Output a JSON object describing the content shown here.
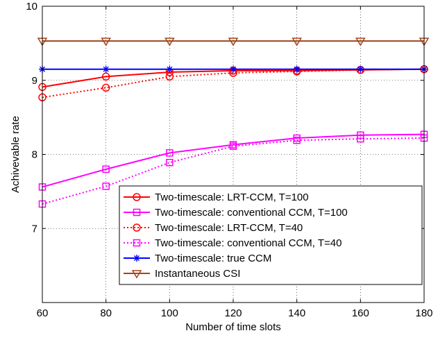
{
  "chart_data": {
    "type": "line",
    "title": "",
    "xlabel": "Number of time slots",
    "ylabel": "Achivevable rate",
    "xlim": [
      60,
      180
    ],
    "ylim": [
      6,
      10
    ],
    "xticks": [
      60,
      80,
      100,
      120,
      140,
      160,
      180
    ],
    "yticks": [
      7,
      8,
      9,
      10
    ],
    "grid": true,
    "legend_position": "bottom-right",
    "x": [
      60,
      80,
      100,
      120,
      140,
      160,
      180
    ],
    "series": [
      {
        "name": "Two-timescale: LRT-CCM, T=100",
        "values": [
          8.91,
          9.05,
          9.11,
          9.13,
          9.13,
          9.14,
          9.15
        ],
        "color": "#ff0000",
        "dash": "solid",
        "marker": "circle"
      },
      {
        "name": "Two-timescale: conventional CCM, T=100",
        "values": [
          7.56,
          7.8,
          8.02,
          8.13,
          8.22,
          8.26,
          8.27
        ],
        "color": "#ff00ff",
        "dash": "solid",
        "marker": "square"
      },
      {
        "name": "Two-timescale: LRT-CCM, T=40",
        "values": [
          8.77,
          8.9,
          9.05,
          9.1,
          9.12,
          9.14,
          9.15
        ],
        "color": "#ff0000",
        "dash": "dotted",
        "marker": "circle"
      },
      {
        "name": "Two-timescale: conventional CCM, T=40",
        "values": [
          7.33,
          7.57,
          7.89,
          8.11,
          8.19,
          8.21,
          8.22
        ],
        "color": "#ff00ff",
        "dash": "dotted",
        "marker": "square"
      },
      {
        "name": "Two-timescale: true CCM",
        "values": [
          9.15,
          9.15,
          9.15,
          9.15,
          9.15,
          9.15,
          9.15
        ],
        "color": "#0000ff",
        "dash": "solid",
        "marker": "asterisk"
      },
      {
        "name": "Instantaneous CSI",
        "values": [
          9.53,
          9.53,
          9.53,
          9.53,
          9.53,
          9.53,
          9.53
        ],
        "color": "#a0451c",
        "dash": "solid",
        "marker": "triangle-down"
      }
    ]
  }
}
